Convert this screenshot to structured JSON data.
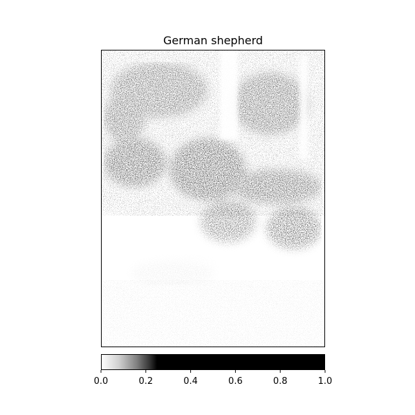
{
  "figure": {
    "title": "German shepherd",
    "image_description_for_drawing": "grayscale saliency-style attention map over a photo",
    "colorbar": {
      "min": 0.0,
      "max": 1.0,
      "ticks": [
        "0.0",
        "0.2",
        "0.4",
        "0.6",
        "0.8",
        "1.0"
      ],
      "tick_values": [
        0.0,
        0.2,
        0.4,
        0.6,
        0.8,
        1.0
      ],
      "colormap": "gray-reversed-saturating-at-0.25"
    },
    "colors": {
      "background": "#ffffff",
      "frame": "#000000",
      "low": "#ffffff",
      "high": "#000000"
    }
  }
}
